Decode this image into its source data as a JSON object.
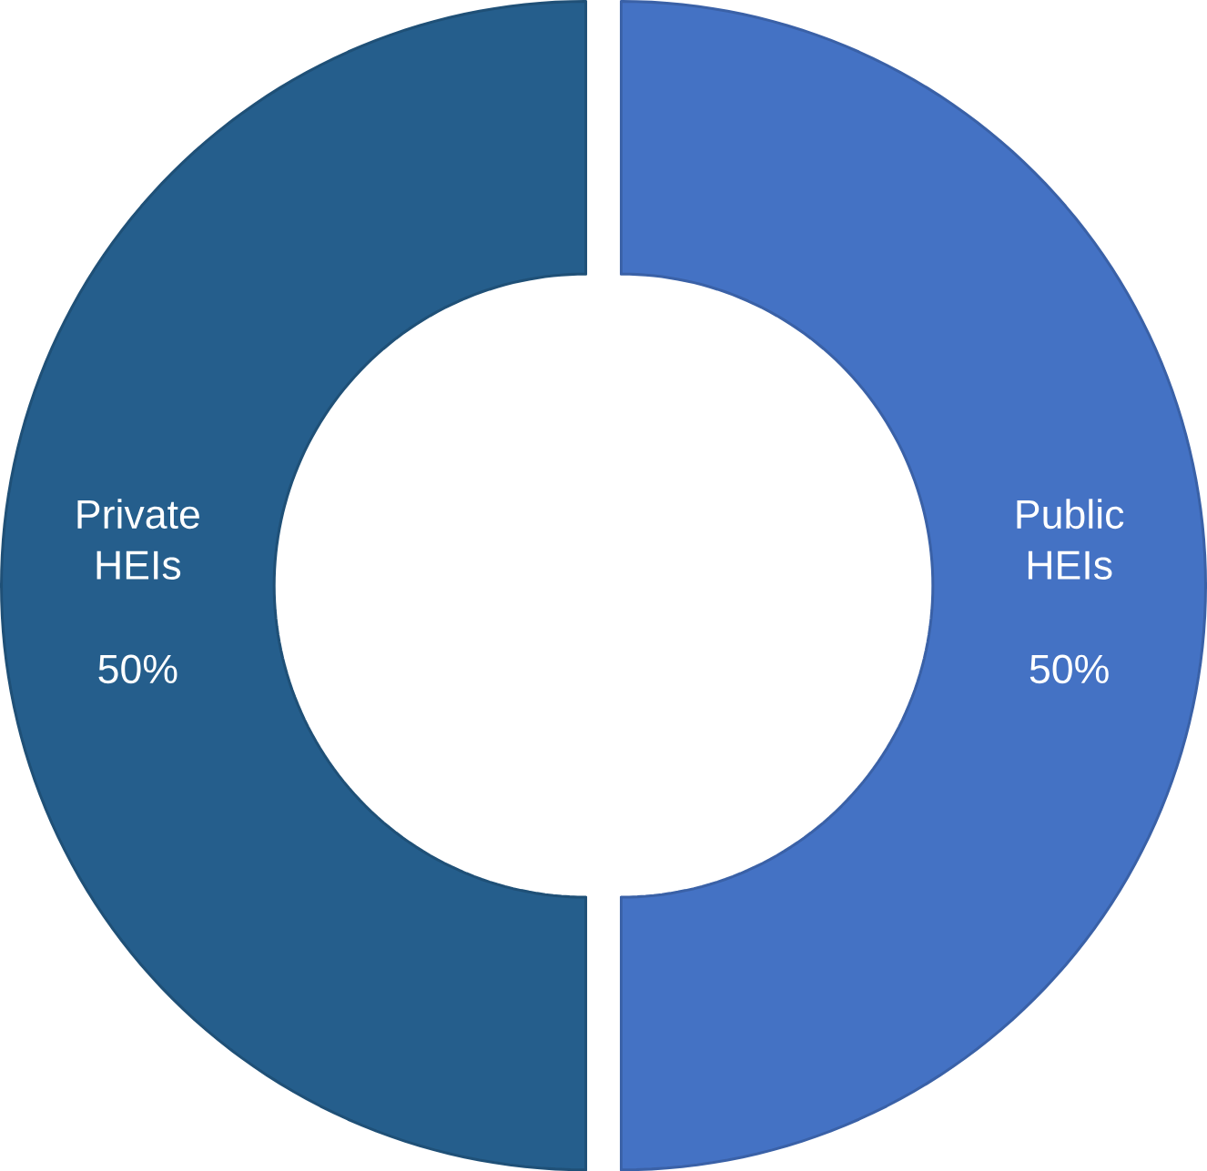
{
  "chart_data": {
    "type": "donut",
    "categories": [
      "Public HEIs",
      "Private HEIs"
    ],
    "values": [
      50,
      50
    ],
    "colors": [
      "#4472c4",
      "#255e8c"
    ],
    "value_labels": [
      "50%",
      "50%"
    ]
  }
}
